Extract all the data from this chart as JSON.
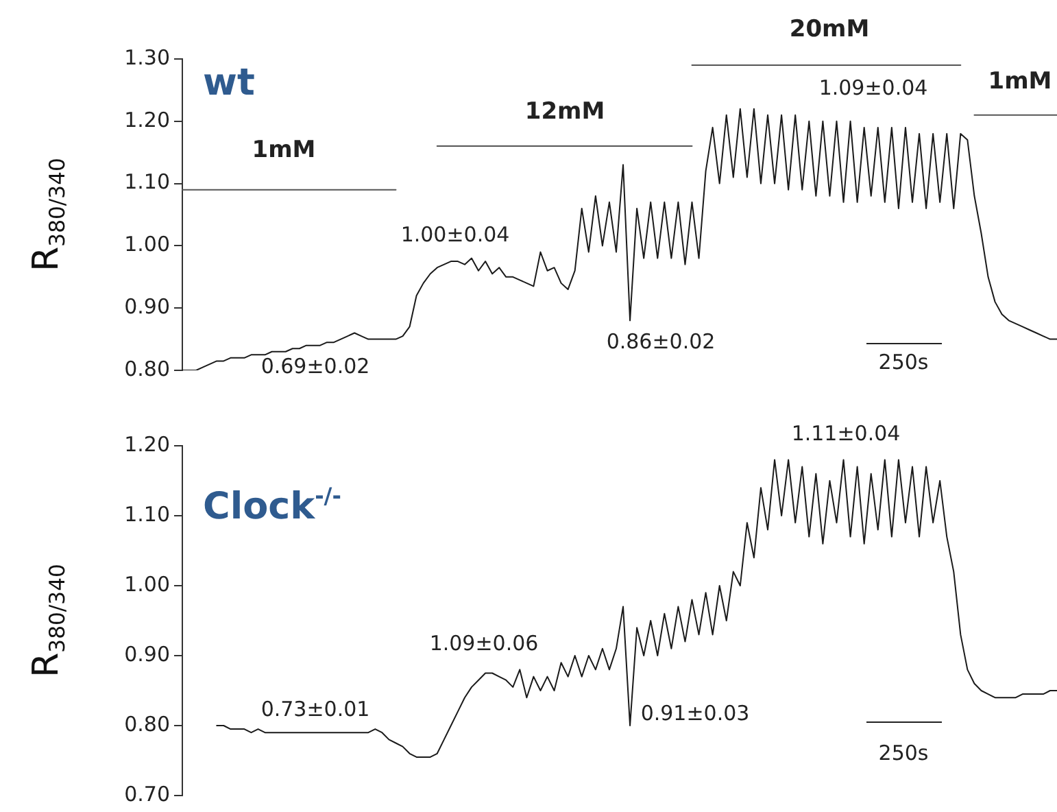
{
  "chart_data": [
    {
      "type": "line",
      "title": "wt",
      "ylabel": "R$_{380/340}$",
      "categories": [
        null,
        null,
        null,
        null,
        null,
        null,
        null,
        null,
        null,
        null,
        null,
        null,
        null,
        null,
        null,
        null,
        null,
        null,
        null,
        null,
        null,
        null,
        null,
        null,
        null,
        null,
        null,
        null,
        null,
        null,
        null,
        null,
        null,
        null,
        null,
        null,
        null,
        null,
        null,
        null,
        null,
        null,
        null,
        null,
        null,
        null,
        null,
        null,
        null,
        null,
        null,
        null,
        null,
        null,
        null,
        null,
        null,
        null,
        null,
        null,
        null,
        null,
        null,
        null,
        null,
        null,
        null,
        null,
        null,
        null,
        null,
        null,
        null,
        null,
        null,
        null,
        null,
        null,
        null,
        null,
        null,
        null,
        null,
        null,
        null,
        null,
        null,
        null,
        null,
        null,
        null,
        null,
        null,
        null,
        null,
        null,
        null,
        null,
        null,
        null,
        null,
        null,
        null,
        null,
        null,
        null,
        null,
        null,
        null,
        null,
        null,
        null,
        null,
        null,
        null,
        null,
        null,
        null,
        null,
        null,
        null,
        null,
        null,
        null,
        null,
        null,
        null,
        null
      ],
      "series": [
        {
          "color": "#1a1a1a",
          "values": [
            0.8,
            0.8,
            0.8,
            0.805,
            0.81,
            0.815,
            0.815,
            0.82,
            0.82,
            0.82,
            0.825,
            0.825,
            0.825,
            0.83,
            0.83,
            0.83,
            0.835,
            0.835,
            0.84,
            0.84,
            0.84,
            0.845,
            0.845,
            0.85,
            0.855,
            0.86,
            0.855,
            0.85,
            0.85,
            0.85,
            0.85,
            0.85,
            0.855,
            0.87,
            0.92,
            0.94,
            0.955,
            0.965,
            0.97,
            0.975,
            0.975,
            0.97,
            0.98,
            0.96,
            0.975,
            0.955,
            0.965,
            0.95,
            0.95,
            0.945,
            0.94,
            0.935,
            0.99,
            0.96,
            0.965,
            0.94,
            0.93,
            0.96,
            1.06,
            0.99,
            1.08,
            1.0,
            1.07,
            0.99,
            1.13,
            0.88,
            1.06,
            0.98,
            1.07,
            0.98,
            1.07,
            0.98,
            1.07,
            0.97,
            1.07,
            0.98,
            1.12,
            1.19,
            1.1,
            1.21,
            1.11,
            1.22,
            1.11,
            1.22,
            1.1,
            1.21,
            1.1,
            1.21,
            1.09,
            1.21,
            1.09,
            1.2,
            1.08,
            1.2,
            1.08,
            1.2,
            1.07,
            1.2,
            1.07,
            1.19,
            1.08,
            1.19,
            1.07,
            1.19,
            1.06,
            1.19,
            1.07,
            1.18,
            1.06,
            1.18,
            1.07,
            1.18,
            1.06,
            1.18,
            1.17,
            1.08,
            1.02,
            0.95,
            0.91,
            0.89,
            0.88,
            0.875,
            0.87,
            0.865,
            0.86,
            0.855,
            0.85,
            0.85
          ]
        },
        {
          "color": "#555555",
          "values": [
            1.09,
            1.09,
            1.09,
            1.09,
            1.09,
            1.09,
            1.09,
            1.09,
            1.09,
            1.09,
            1.09,
            1.09,
            1.09,
            1.09,
            1.09,
            1.09,
            1.09,
            1.09,
            1.09,
            1.09,
            1.09,
            1.09,
            1.09,
            1.09,
            1.09,
            1.09,
            1.09,
            1.09,
            1.09,
            1.09,
            1.09,
            1.09,
            null,
            null,
            null,
            null,
            null,
            1.16,
            1.16,
            1.16,
            1.16,
            1.16,
            1.16,
            1.16,
            1.16,
            1.16,
            1.16,
            1.16,
            1.16,
            1.16,
            1.16,
            1.16,
            1.16,
            1.16,
            1.16,
            1.16,
            1.16,
            1.16,
            1.16,
            1.16,
            1.16,
            1.16,
            1.16,
            1.16,
            1.16,
            1.16,
            1.16,
            1.16,
            1.16,
            1.16,
            1.16,
            1.16,
            1.16,
            1.16,
            1.16,
            null,
            null,
            null,
            null,
            null,
            null,
            null,
            null,
            null,
            null,
            null,
            null,
            null,
            null,
            null,
            null,
            null,
            null,
            null,
            null,
            null,
            null,
            null,
            null,
            null,
            null,
            null,
            null,
            null,
            null,
            null,
            null,
            null,
            null,
            null,
            null,
            null,
            null,
            null,
            null,
            null,
            null,
            null,
            null,
            null,
            null,
            null,
            null,
            null,
            null,
            null,
            null,
            null
          ]
        },
        {
          "color": "#555555",
          "values": [
            null,
            null,
            null,
            null,
            null,
            null,
            null,
            null,
            null,
            null,
            null,
            null,
            null,
            null,
            null,
            null,
            null,
            null,
            null,
            null,
            null,
            null,
            null,
            null,
            null,
            null,
            null,
            null,
            null,
            null,
            null,
            null,
            null,
            null,
            null,
            null,
            null,
            null,
            null,
            null,
            null,
            null,
            null,
            null,
            null,
            null,
            null,
            null,
            null,
            null,
            null,
            null,
            null,
            null,
            null,
            null,
            null,
            null,
            null,
            null,
            null,
            null,
            null,
            null,
            null,
            null,
            null,
            null,
            null,
            null,
            null,
            null,
            null,
            null,
            1.29,
            1.29,
            1.29,
            1.29,
            1.29,
            1.29,
            1.29,
            1.29,
            1.29,
            1.29,
            1.29,
            1.29,
            1.29,
            1.29,
            1.29,
            1.29,
            1.29,
            1.29,
            1.29,
            1.29,
            1.29,
            1.29,
            1.29,
            1.29,
            1.29,
            1.29,
            1.29,
            1.29,
            1.29,
            1.29,
            1.29,
            1.29,
            1.29,
            1.29,
            1.29,
            1.29,
            1.29,
            1.29,
            1.29,
            1.29,
            null,
            1.21,
            1.21,
            1.21,
            1.21,
            1.21,
            1.21,
            1.21,
            1.21,
            1.21,
            1.21,
            1.21,
            1.21,
            1.21
          ]
        }
      ],
      "ylim": [
        0.8,
        1.3
      ],
      "yticks": [
        {
          "value": 0.8,
          "label": "0.80"
        },
        {
          "value": 0.9,
          "label": "0.90"
        },
        {
          "value": 1.0,
          "label": "1.00"
        },
        {
          "value": 1.1,
          "label": "1.10"
        },
        {
          "value": 1.2,
          "label": "1.20"
        },
        {
          "value": 1.3,
          "label": "1.30"
        }
      ],
      "tick_labels": "y",
      "grid": false,
      "legend": false,
      "marker": "none",
      "line_style": "solid",
      "annotations": [
        "1mM",
        "12mM",
        "20mM",
        "1mM",
        "0.69±0.02",
        "1.00±0.04",
        "0.86±0.02",
        "1.09±0.04",
        "250s"
      ]
    },
    {
      "type": "line",
      "title": "Clock$^{-/-}$",
      "ylabel": "R$_{380/340}$",
      "categories": [
        null,
        null,
        null,
        null,
        null,
        null,
        null,
        null,
        null,
        null,
        null,
        null,
        null,
        null,
        null,
        null,
        null,
        null,
        null,
        null,
        null,
        null,
        null,
        null,
        null,
        null,
        null,
        null,
        null,
        null,
        null,
        null,
        null,
        null,
        null,
        null,
        null,
        null,
        null,
        null,
        null,
        null,
        null,
        null,
        null,
        null,
        null,
        null,
        null,
        null,
        null,
        null,
        null,
        null,
        null,
        null,
        null,
        null,
        null,
        null,
        null,
        null,
        null,
        null,
        null,
        null,
        null,
        null,
        null,
        null,
        null,
        null,
        null,
        null,
        null,
        null,
        null,
        null,
        null,
        null,
        null,
        null,
        null,
        null,
        null,
        null,
        null,
        null,
        null,
        null,
        null,
        null,
        null,
        null,
        null,
        null,
        null,
        null,
        null,
        null,
        null,
        null,
        null,
        null,
        null,
        null,
        null,
        null,
        null,
        null,
        null,
        null,
        null,
        null,
        null,
        null,
        null,
        null,
        null,
        null,
        null,
        null,
        null,
        null,
        null,
        null,
        null,
        null
      ],
      "series": [
        {
          "color": "#1a1a1a",
          "values": [
            null,
            null,
            null,
            null,
            null,
            0.8,
            0.8,
            0.795,
            0.795,
            0.795,
            0.79,
            0.795,
            0.79,
            0.79,
            0.79,
            0.79,
            0.79,
            0.79,
            0.79,
            0.79,
            0.79,
            0.79,
            0.79,
            0.79,
            0.79,
            0.79,
            0.79,
            0.79,
            0.795,
            0.79,
            0.78,
            0.775,
            0.77,
            0.76,
            0.755,
            0.755,
            0.755,
            0.76,
            0.78,
            0.8,
            0.82,
            0.84,
            0.855,
            0.865,
            0.875,
            0.875,
            0.87,
            0.865,
            0.855,
            0.88,
            0.84,
            0.87,
            0.85,
            0.87,
            0.85,
            0.89,
            0.87,
            0.9,
            0.87,
            0.9,
            0.88,
            0.91,
            0.88,
            0.91,
            0.97,
            0.8,
            0.94,
            0.9,
            0.95,
            0.9,
            0.96,
            0.91,
            0.97,
            0.92,
            0.98,
            0.93,
            0.99,
            0.93,
            1.0,
            0.95,
            1.02,
            1.0,
            1.09,
            1.04,
            1.14,
            1.08,
            1.18,
            1.1,
            1.18,
            1.09,
            1.17,
            1.07,
            1.16,
            1.06,
            1.15,
            1.09,
            1.18,
            1.07,
            1.17,
            1.06,
            1.16,
            1.08,
            1.18,
            1.07,
            1.18,
            1.09,
            1.17,
            1.07,
            1.17,
            1.09,
            1.15,
            1.07,
            1.02,
            0.93,
            0.88,
            0.86,
            0.85,
            0.845,
            0.84,
            0.84,
            0.84,
            0.84,
            0.845,
            0.845,
            0.845,
            0.845,
            0.85,
            0.85
          ]
        }
      ],
      "ylim": [
        0.7,
        1.2
      ],
      "yticks": [
        {
          "value": 0.7,
          "label": "0.70"
        },
        {
          "value": 0.8,
          "label": "0.80"
        },
        {
          "value": 0.9,
          "label": "0.90"
        },
        {
          "value": 1.0,
          "label": "1.00"
        },
        {
          "value": 1.1,
          "label": "1.10"
        },
        {
          "value": 1.2,
          "label": "1.20"
        }
      ],
      "tick_labels": "y",
      "grid": false,
      "legend": false,
      "marker": "none",
      "line_style": "solid",
      "annotations": [
        "0.73±0.01",
        "1.09±0.06",
        "0.91±0.03",
        "1.11±0.04",
        "250s"
      ]
    }
  ]
}
